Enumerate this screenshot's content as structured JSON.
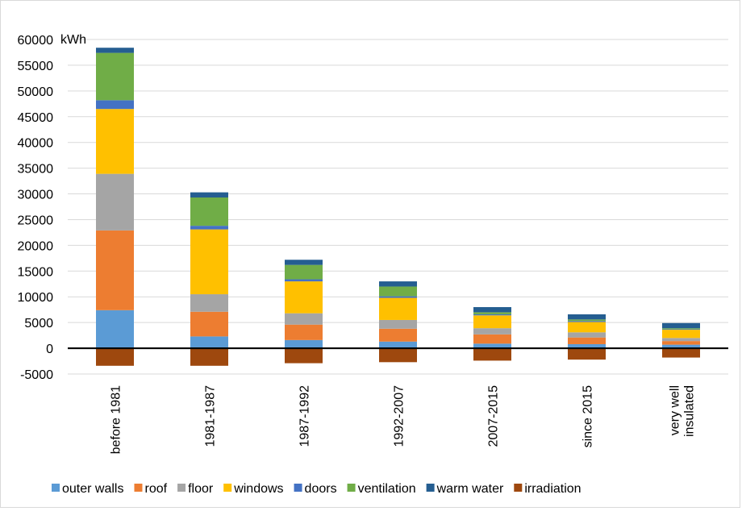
{
  "chart_data": {
    "type": "bar",
    "stacked": true,
    "title": "",
    "ylabel": "kWh",
    "xlabel": "",
    "ylim": [
      -5000,
      60000
    ],
    "yticks": [
      -5000,
      0,
      5000,
      10000,
      15000,
      20000,
      25000,
      30000,
      35000,
      40000,
      45000,
      50000,
      55000,
      60000
    ],
    "grid": true,
    "legend_position": "bottom",
    "categories": [
      [
        "before 1981"
      ],
      [
        "1981-1987"
      ],
      [
        "1987-1992"
      ],
      [
        "1992-2007"
      ],
      [
        "2007-2015"
      ],
      [
        "since 2015"
      ],
      [
        "very well",
        "insulated"
      ]
    ],
    "series": [
      {
        "name": "outer walls",
        "color": "#5b9bd5",
        "values": [
          7400,
          2300,
          1600,
          1300,
          900,
          800,
          700
        ]
      },
      {
        "name": "roof",
        "color": "#ed7d31",
        "values": [
          15500,
          4800,
          3000,
          2500,
          1800,
          1300,
          700
        ]
      },
      {
        "name": "floor",
        "color": "#a5a5a5",
        "values": [
          11000,
          3400,
          2200,
          1700,
          1200,
          1000,
          600
        ]
      },
      {
        "name": "windows",
        "color": "#ffc000",
        "values": [
          12600,
          12600,
          6200,
          4300,
          2500,
          2000,
          1600
        ]
      },
      {
        "name": "doors",
        "color": "#4472c4",
        "values": [
          1700,
          700,
          400,
          300,
          200,
          200,
          100
        ]
      },
      {
        "name": "ventilation",
        "color": "#70ad47",
        "values": [
          9200,
          5500,
          2800,
          1900,
          400,
          300,
          200
        ]
      },
      {
        "name": "warm water",
        "color": "#255e91",
        "values": [
          1000,
          1000,
          1000,
          1000,
          1000,
          1000,
          1000
        ]
      },
      {
        "name": "irradiation",
        "color": "#9e480e",
        "values": [
          -3400,
          -3400,
          -2900,
          -2700,
          -2400,
          -2200,
          -1800
        ]
      }
    ]
  }
}
